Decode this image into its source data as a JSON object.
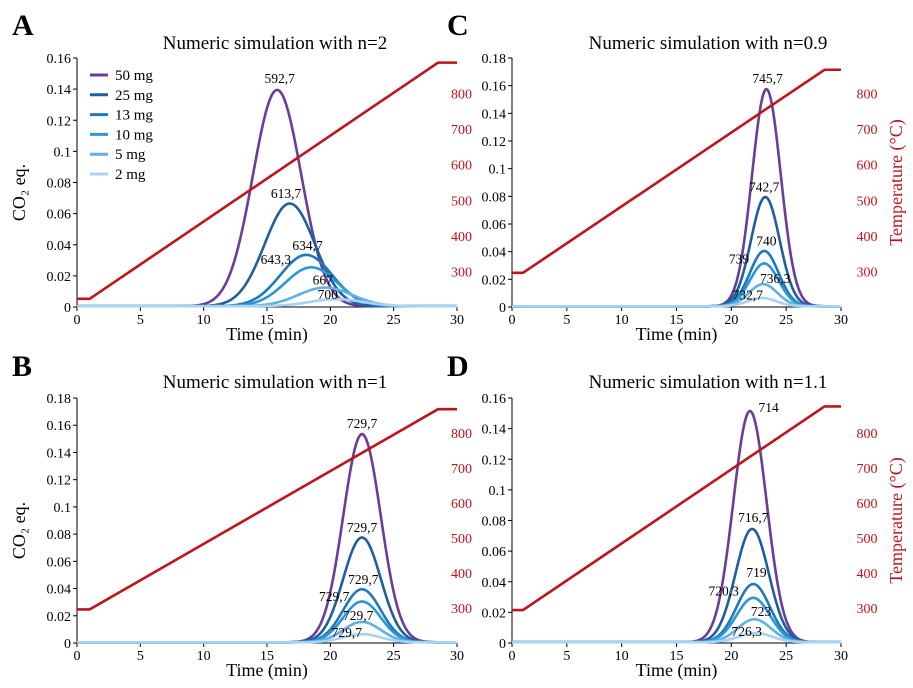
{
  "colors": {
    "temperature": "#c0141b",
    "series": [
      "#6a3d98",
      "#1f5fa0",
      "#1e78be",
      "#2a97d6",
      "#5fb0e4",
      "#a9d2f0"
    ],
    "axis": "#000000"
  },
  "chart_data": [
    {
      "panel": "A",
      "type": "line",
      "title": "Numeric simulation with n=2",
      "xlabel": "Time (min)",
      "ylabel": "CO₂ eq.",
      "y2label": "",
      "xlim": [
        0,
        30
      ],
      "ylim": [
        0,
        0.16
      ],
      "y2lim": [
        200,
        900
      ],
      "xticks": [
        "0",
        "5",
        "10",
        "15",
        "20",
        "25",
        "30"
      ],
      "yticks": [
        "0",
        "0.02",
        "0.04",
        "0.06",
        "0.08",
        "0.1",
        "0.12",
        "0.14",
        "0.16"
      ],
      "y2ticks": [
        "300",
        "400",
        "500",
        "600",
        "700",
        "800"
      ],
      "legend": {
        "position": "top-left",
        "entries": [
          "50 mg",
          "25 mg",
          "13 mg",
          "10 mg",
          "5 mg",
          "2 mg"
        ]
      },
      "temperature": {
        "x": [
          0,
          1,
          28.5,
          30
        ],
        "y": [
          223,
          223,
          887,
          887
        ]
      },
      "series": [
        {
          "name": "50 mg",
          "peak_x": 15.8,
          "peak_y": 0.139,
          "width": 2.7,
          "label": "592,7",
          "label_x": 16,
          "label_y": 0.144
        },
        {
          "name": "25 mg",
          "peak_x": 16.8,
          "peak_y": 0.066,
          "width": 2.8,
          "label": "613,7",
          "label_x": 16.5,
          "label_y": 0.07
        },
        {
          "name": "13 mg",
          "peak_x": 18.1,
          "peak_y": 0.033,
          "width": 2.9,
          "label": "634,7",
          "label_x": 18.2,
          "label_y": 0.0365
        },
        {
          "name": "10 mg",
          "peak_x": 18.5,
          "peak_y": 0.025,
          "width": 2.9,
          "label": "643,3",
          "label_x": 15.7,
          "label_y": 0.0275
        },
        {
          "name": "5 mg",
          "peak_x": 19.6,
          "peak_y": 0.012,
          "width": 3.0,
          "label": "667",
          "label_x": 19.4,
          "label_y": 0.0145
        },
        {
          "name": "2 mg",
          "peak_x": 20.5,
          "peak_y": 0.0045,
          "width": 3.0,
          "label": "700",
          "label_x": 19.8,
          "label_y": 0.005
        }
      ]
    },
    {
      "panel": "C",
      "type": "line",
      "title": "Numeric simulation with n=0.9",
      "xlabel": "Time (min)",
      "ylabel": "",
      "y2label": "Temperature (°C)",
      "xlim": [
        0,
        30
      ],
      "ylim": [
        0,
        0.18
      ],
      "y2lim": [
        200,
        900
      ],
      "xticks": [
        "0",
        "5",
        "10",
        "15",
        "20",
        "25",
        "30"
      ],
      "yticks": [
        "0",
        "0.02",
        "0.04",
        "0.06",
        "0.08",
        "0.1",
        "0.12",
        "0.14",
        "0.16",
        "0.18"
      ],
      "y2ticks": [
        "300",
        "400",
        "500",
        "600",
        "700",
        "800"
      ],
      "temperature": {
        "x": [
          0,
          1,
          28.5,
          30
        ],
        "y": [
          296,
          296,
          867,
          867
        ]
      },
      "series": [
        {
          "name": "50 mg",
          "peak_x": 23.2,
          "peak_y": 0.157,
          "width": 1.85,
          "label": "745,7",
          "label_x": 23.3,
          "label_y": 0.162
        },
        {
          "name": "25 mg",
          "peak_x": 23.1,
          "peak_y": 0.079,
          "width": 1.85,
          "label": "742,7",
          "label_x": 23.0,
          "label_y": 0.0835
        },
        {
          "name": "13 mg",
          "peak_x": 23.0,
          "peak_y": 0.04,
          "width": 1.85,
          "label": "740",
          "label_x": 23.2,
          "label_y": 0.0445
        },
        {
          "name": "10 mg",
          "peak_x": 23.0,
          "peak_y": 0.031,
          "width": 1.85,
          "label": "739",
          "label_x": 20.7,
          "label_y": 0.0315
        },
        {
          "name": "5 mg",
          "peak_x": 22.9,
          "peak_y": 0.016,
          "width": 1.85,
          "label": "736,3",
          "label_x": 24.0,
          "label_y": 0.0175
        },
        {
          "name": "2 mg",
          "peak_x": 22.8,
          "peak_y": 0.006,
          "width": 1.85,
          "label": "732,7",
          "label_x": 21.5,
          "label_y": 0.0055
        }
      ]
    },
    {
      "panel": "B",
      "type": "line",
      "title": "Numeric simulation with n=1",
      "xlabel": "Time (min)",
      "ylabel": "CO₂ eq.",
      "y2label": "",
      "xlim": [
        0,
        30
      ],
      "ylim": [
        0,
        0.18
      ],
      "y2lim": [
        200,
        900
      ],
      "xticks": [
        "0",
        "5",
        "10",
        "15",
        "20",
        "25",
        "30"
      ],
      "yticks": [
        "0",
        "0.02",
        "0.04",
        "0.06",
        "0.08",
        "0.1",
        "0.12",
        "0.14",
        "0.16",
        "0.18"
      ],
      "y2ticks": [
        "300",
        "400",
        "500",
        "600",
        "700",
        "800"
      ],
      "temperature": {
        "x": [
          0,
          1,
          28.5,
          30
        ],
        "y": [
          296,
          296,
          868,
          868
        ]
      },
      "series": [
        {
          "name": "50 mg",
          "peak_x": 22.5,
          "peak_y": 0.153,
          "width": 2.1,
          "label": "729,7",
          "label_x": 22.5,
          "label_y": 0.158
        },
        {
          "name": "25 mg",
          "peak_x": 22.5,
          "peak_y": 0.077,
          "width": 2.1,
          "label": "729,7",
          "label_x": 22.5,
          "label_y": 0.0815
        },
        {
          "name": "13 mg",
          "peak_x": 22.5,
          "peak_y": 0.039,
          "width": 2.1,
          "label": "729,7",
          "label_x": 22.6,
          "label_y": 0.0435
        },
        {
          "name": "10 mg",
          "peak_x": 22.5,
          "peak_y": 0.03,
          "width": 2.1,
          "label": "729,7",
          "label_x": 20.3,
          "label_y": 0.031
        },
        {
          "name": "5 mg",
          "peak_x": 22.5,
          "peak_y": 0.015,
          "width": 2.1,
          "label": "729,7",
          "label_x": 22.2,
          "label_y": 0.017
        },
        {
          "name": "2 mg",
          "peak_x": 22.5,
          "peak_y": 0.006,
          "width": 2.1,
          "label": "729,7",
          "label_x": 21.3,
          "label_y": 0.0045
        }
      ]
    },
    {
      "panel": "D",
      "type": "line",
      "title": "Numeric simulation with n=1.1",
      "xlabel": "Time (min)",
      "ylabel": "",
      "y2label": "Temperature (°C)",
      "xlim": [
        0,
        30
      ],
      "ylim": [
        0,
        0.16
      ],
      "y2lim": [
        200,
        900
      ],
      "xticks": [
        "0",
        "5",
        "10",
        "15",
        "20",
        "25",
        "30"
      ],
      "yticks": [
        "0",
        "0.02",
        "0.04",
        "0.06",
        "0.08",
        "0.1",
        "0.12",
        "0.14",
        "0.16"
      ],
      "y2ticks": [
        "300",
        "400",
        "500",
        "600",
        "700",
        "800"
      ],
      "temperature": {
        "x": [
          0,
          1,
          28.5,
          30
        ],
        "y": [
          294,
          294,
          876,
          876
        ]
      },
      "series": [
        {
          "name": "50 mg",
          "peak_x": 21.7,
          "peak_y": 0.151,
          "width": 2.15,
          "label": "714",
          "label_x": 23.4,
          "label_y": 0.151
        },
        {
          "name": "25 mg",
          "peak_x": 21.9,
          "peak_y": 0.074,
          "width": 2.15,
          "label": "716,7",
          "label_x": 22.0,
          "label_y": 0.079
        },
        {
          "name": "13 mg",
          "peak_x": 22.0,
          "peak_y": 0.038,
          "width": 2.15,
          "label": "719",
          "label_x": 22.3,
          "label_y": 0.043
        },
        {
          "name": "10 mg",
          "peak_x": 22.0,
          "peak_y": 0.029,
          "width": 2.15,
          "label": "720,3",
          "label_x": 19.3,
          "label_y": 0.031
        },
        {
          "name": "5 mg",
          "peak_x": 22.1,
          "peak_y": 0.015,
          "width": 2.15,
          "label": "723",
          "label_x": 22.7,
          "label_y": 0.0175
        },
        {
          "name": "2 mg",
          "peak_x": 22.2,
          "peak_y": 0.006,
          "width": 2.15,
          "label": "726,3",
          "label_x": 21.4,
          "label_y": 0.0045
        }
      ]
    }
  ]
}
